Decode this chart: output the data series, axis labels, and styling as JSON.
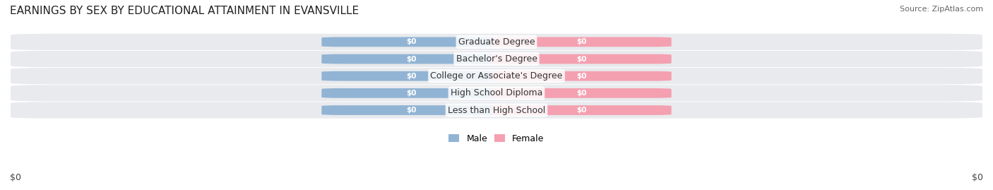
{
  "title": "EARNINGS BY SEX BY EDUCATIONAL ATTAINMENT IN EVANSVILLE",
  "source": "Source: ZipAtlas.com",
  "categories": [
    "Less than High School",
    "High School Diploma",
    "College or Associate's Degree",
    "Bachelor's Degree",
    "Graduate Degree"
  ],
  "male_values": [
    0,
    0,
    0,
    0,
    0
  ],
  "female_values": [
    0,
    0,
    0,
    0,
    0
  ],
  "male_color": "#92b4d4",
  "female_color": "#f4a0b0",
  "male_label": "Male",
  "female_label": "Female",
  "bar_label_color": "#ffffff",
  "category_label_color": "#333333",
  "background_color": "#ffffff",
  "row_bg_color_odd": "#e8e8e8",
  "row_bg_color_even": "#f0f0f0",
  "xlim": [
    -1,
    1
  ],
  "xlabel_left": "$0",
  "xlabel_right": "$0",
  "title_fontsize": 11,
  "source_fontsize": 8,
  "bar_label_fontsize": 7.5,
  "category_fontsize": 9,
  "legend_fontsize": 9,
  "axis_tick_fontsize": 9
}
